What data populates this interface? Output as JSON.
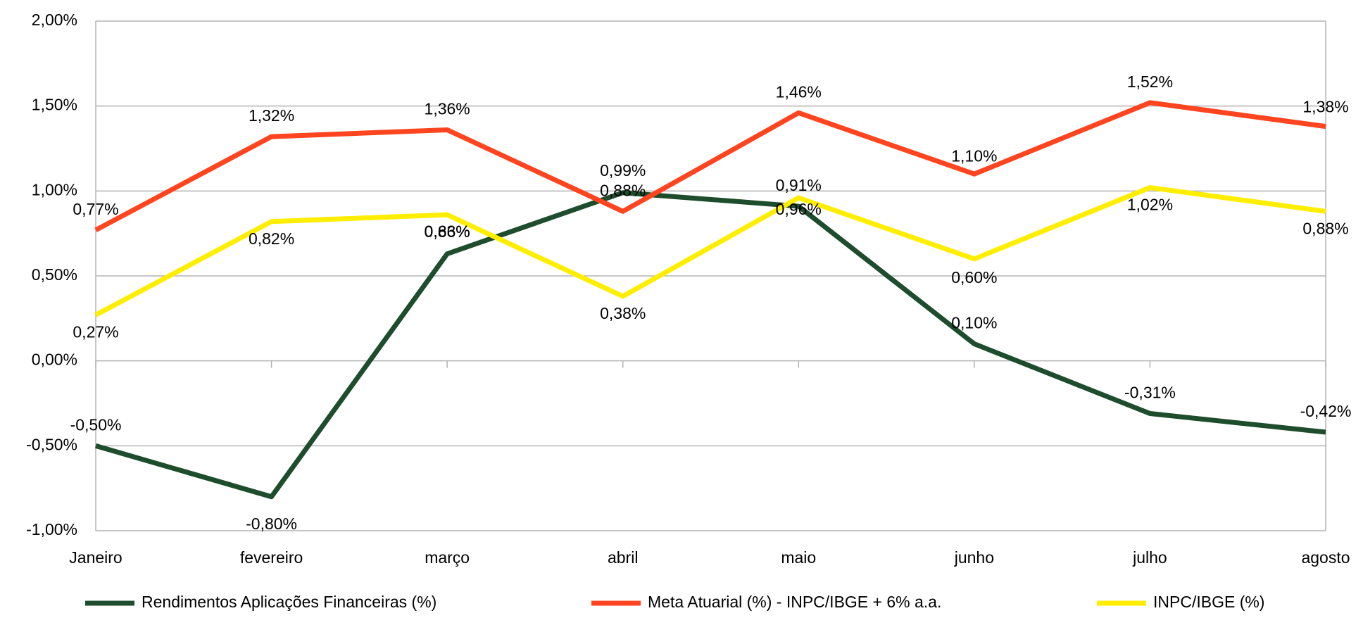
{
  "chart_data": {
    "type": "line",
    "categories": [
      "Janeiro",
      "fevereiro",
      "março",
      "abril",
      "maio",
      "junho",
      "julho",
      "agosto"
    ],
    "series": [
      {
        "name": "Rendimentos Aplicações Financeiras (%)",
        "color": "#1d4d2c",
        "values": [
          -0.5,
          -0.8,
          0.63,
          0.99,
          0.91,
          0.1,
          -0.31,
          -0.42
        ],
        "value_labels": [
          "-0,50%",
          "-0,80%",
          "0,63%",
          "0,99%",
          "0,91%",
          "0,10%",
          "-0,31%",
          "-0,42%"
        ]
      },
      {
        "name": "Meta Atuarial (%) - INPC/IBGE + 6% a.a.",
        "color": "#ff4520",
        "values": [
          0.77,
          1.32,
          1.36,
          0.88,
          1.46,
          1.1,
          1.52,
          1.38
        ],
        "value_labels": [
          "0,77%",
          "1,32%",
          "1,36%",
          "0,88%",
          "1,46%",
          "1,10%",
          "1,52%",
          "1,38%"
        ]
      },
      {
        "name": "INPC/IBGE (%)",
        "color": "#ffee00",
        "values": [
          0.27,
          0.82,
          0.86,
          0.38,
          0.96,
          0.6,
          1.02,
          0.88
        ],
        "value_labels": [
          "0,27%",
          "0,82%",
          "0,86%",
          "0,38%",
          "0,96%",
          "0,60%",
          "1,02%",
          "0,88%"
        ]
      }
    ],
    "ylim": [
      -1,
      2
    ],
    "yticks": [
      {
        "value": -1,
        "label": "-1,00%"
      },
      {
        "value": -0.5,
        "label": "-0,50%"
      },
      {
        "value": 0,
        "label": "0,00%"
      },
      {
        "value": 0.5,
        "label": "0,50%"
      },
      {
        "value": 1,
        "label": "1,00%"
      },
      {
        "value": 1.5,
        "label": "1,50%"
      },
      {
        "value": 2,
        "label": "2,00%"
      }
    ],
    "grid": true,
    "legend": "bottom"
  }
}
